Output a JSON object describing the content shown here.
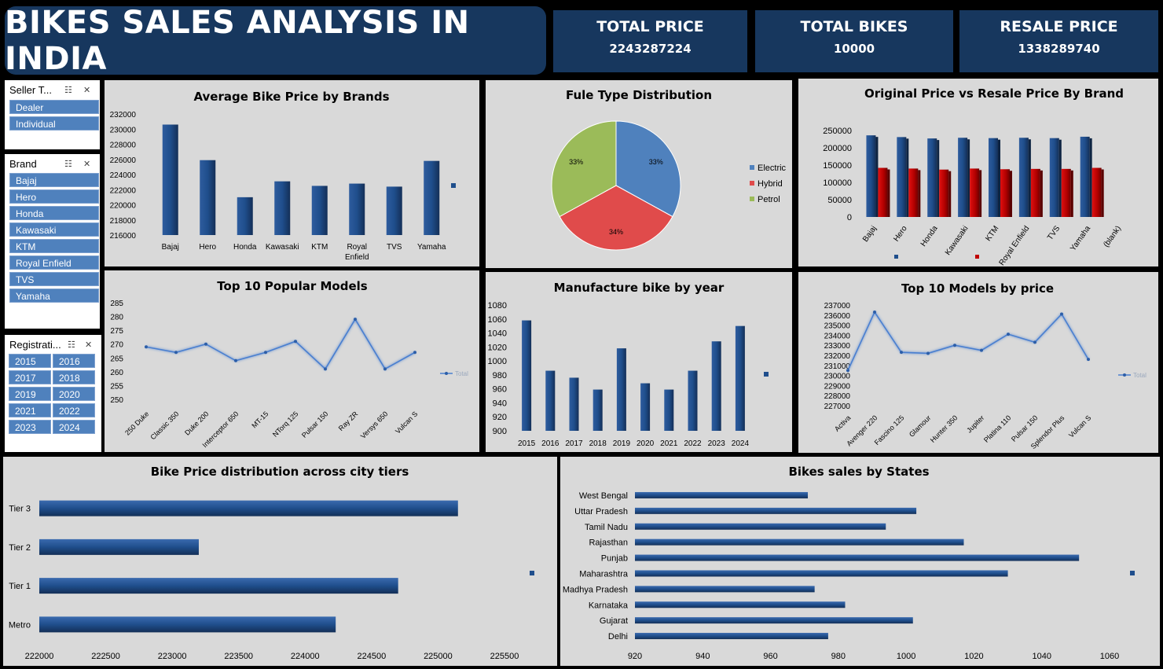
{
  "header": {
    "title": "BIKES SALES ANALYSIS IN INDIA"
  },
  "kpis": [
    {
      "label": "TOTAL PRICE",
      "value": "2243287224"
    },
    {
      "label": "TOTAL BIKES",
      "value": "10000"
    },
    {
      "label": "RESALE PRICE",
      "value": "1338289740"
    }
  ],
  "slicers": {
    "seller": {
      "title": "Seller T...",
      "items": [
        "Dealer",
        "Individual"
      ]
    },
    "brand": {
      "title": "Brand",
      "items": [
        "Bajaj",
        "Hero",
        "Honda",
        "Kawasaki",
        "KTM",
        "Royal Enfield",
        "TVS",
        "Yamaha"
      ]
    },
    "registration": {
      "title": "Registrati...",
      "items": [
        "2015",
        "2016",
        "2017",
        "2018",
        "2019",
        "2020",
        "2021",
        "2022",
        "2023",
        "2024"
      ]
    }
  },
  "colors": {
    "bar": "#1f4e8c",
    "resale": "#c00000",
    "electric": "#4f81bd",
    "hybrid": "#e04b4b",
    "petrol": "#9bbb59",
    "line": "#4a7fd0"
  },
  "chart_data": [
    {
      "id": "avg_price",
      "type": "bar",
      "title": "Average Bike  Price by Brands",
      "categories": [
        "Bajaj",
        "Hero",
        "Honda",
        "Kawasaki",
        "KTM",
        "Royal Enfield",
        "TVS",
        "Yamaha"
      ],
      "values": [
        230600,
        225900,
        221000,
        223100,
        222500,
        222800,
        222400,
        225800
      ],
      "ylim": [
        216000,
        232000
      ],
      "yticks": [
        216000,
        218000,
        220000,
        222000,
        224000,
        226000,
        228000,
        230000,
        232000
      ]
    },
    {
      "id": "fuel",
      "type": "pie",
      "title": "Fule Type Distribution",
      "labels": [
        "Electric",
        "Hybrid",
        "Petrol"
      ],
      "values": [
        33,
        34,
        33
      ],
      "value_labels": [
        "33%",
        "34%",
        "33%"
      ]
    },
    {
      "id": "orig_resale",
      "type": "bar",
      "title": "Original Price vs Resale Price By Brand",
      "categories": [
        "Bajaj",
        "Hero",
        "Honda",
        "Kawasaki",
        "KTM",
        "Royal Enfield",
        "TVS",
        "Yamaha",
        "(blank)"
      ],
      "series": [
        {
          "values": [
            236000,
            231000,
            227000,
            229000,
            228000,
            229000,
            228000,
            232000,
            null
          ]
        },
        {
          "values": [
            142000,
            140000,
            137000,
            140000,
            138000,
            139000,
            139000,
            142000,
            null
          ]
        }
      ],
      "ylim": [
        0,
        250000
      ],
      "yticks": [
        0,
        50000,
        100000,
        150000,
        200000,
        250000
      ]
    },
    {
      "id": "popular_models",
      "type": "line",
      "title": "Top 10 Popular Models",
      "categories": [
        "250 Duke",
        "Classic 350",
        "Duke 200",
        "Interceptor 650",
        "MT-15",
        "NTorq 125",
        "Pulsar 150",
        "Ray ZR",
        "Versys 650",
        "Vulcan S"
      ],
      "values": [
        269,
        267,
        270,
        264,
        267,
        271,
        261,
        279,
        261,
        267
      ],
      "ylim": [
        250,
        285
      ],
      "yticks": [
        250,
        255,
        260,
        265,
        270,
        275,
        280,
        285
      ],
      "legend": "Total"
    },
    {
      "id": "by_year",
      "type": "bar",
      "title": "Manufacture bike by year",
      "categories": [
        "2015",
        "2016",
        "2017",
        "2018",
        "2019",
        "2020",
        "2021",
        "2022",
        "2023",
        "2024"
      ],
      "values": [
        1058,
        986,
        976,
        959,
        1018,
        968,
        959,
        986,
        1028,
        1050
      ],
      "ylim": [
        900,
        1080
      ],
      "yticks": [
        900,
        920,
        940,
        960,
        980,
        1000,
        1020,
        1040,
        1060,
        1080
      ]
    },
    {
      "id": "models_price",
      "type": "line",
      "title": "Top 10 Models by price",
      "categories": [
        "Activa",
        "Avenger 220",
        "Fascino 125",
        "Glamour",
        "Hunter 350",
        "Jupiter",
        "Platina 110",
        "Pulsar 150",
        "Splendor Plus",
        "Vulcan S"
      ],
      "values": [
        230500,
        236300,
        232300,
        232200,
        233000,
        232500,
        234100,
        233300,
        236100,
        231600
      ],
      "ylim": [
        227000,
        237000
      ],
      "yticks": [
        227000,
        228000,
        229000,
        230000,
        231000,
        232000,
        233000,
        234000,
        235000,
        236000,
        237000
      ],
      "legend": "Total"
    },
    {
      "id": "city_tiers",
      "type": "bar",
      "orientation": "horizontal",
      "title": "Bike Price distribution across city tiers",
      "categories": [
        "Tier 3",
        "Tier 2",
        "Tier 1",
        "Metro"
      ],
      "values": [
        225150,
        223200,
        224700,
        224230
      ],
      "xlim": [
        222000,
        225500
      ],
      "xticks": [
        222000,
        222500,
        223000,
        223500,
        224000,
        224500,
        225000,
        225500
      ]
    },
    {
      "id": "states",
      "type": "bar",
      "orientation": "horizontal",
      "title": "Bikes sales by States",
      "categories": [
        "West Bengal",
        "Uttar Pradesh",
        "Tamil Nadu",
        "Rajasthan",
        "Punjab",
        "Maharashtra",
        "Madhya Pradesh",
        "Karnataka",
        "Gujarat",
        "Delhi"
      ],
      "values": [
        971,
        1003,
        994,
        1017,
        1051,
        1030,
        973,
        982,
        1002,
        977
      ],
      "xlim": [
        920,
        1060
      ],
      "xticks": [
        920,
        940,
        960,
        980,
        1000,
        1020,
        1040,
        1060
      ]
    }
  ]
}
